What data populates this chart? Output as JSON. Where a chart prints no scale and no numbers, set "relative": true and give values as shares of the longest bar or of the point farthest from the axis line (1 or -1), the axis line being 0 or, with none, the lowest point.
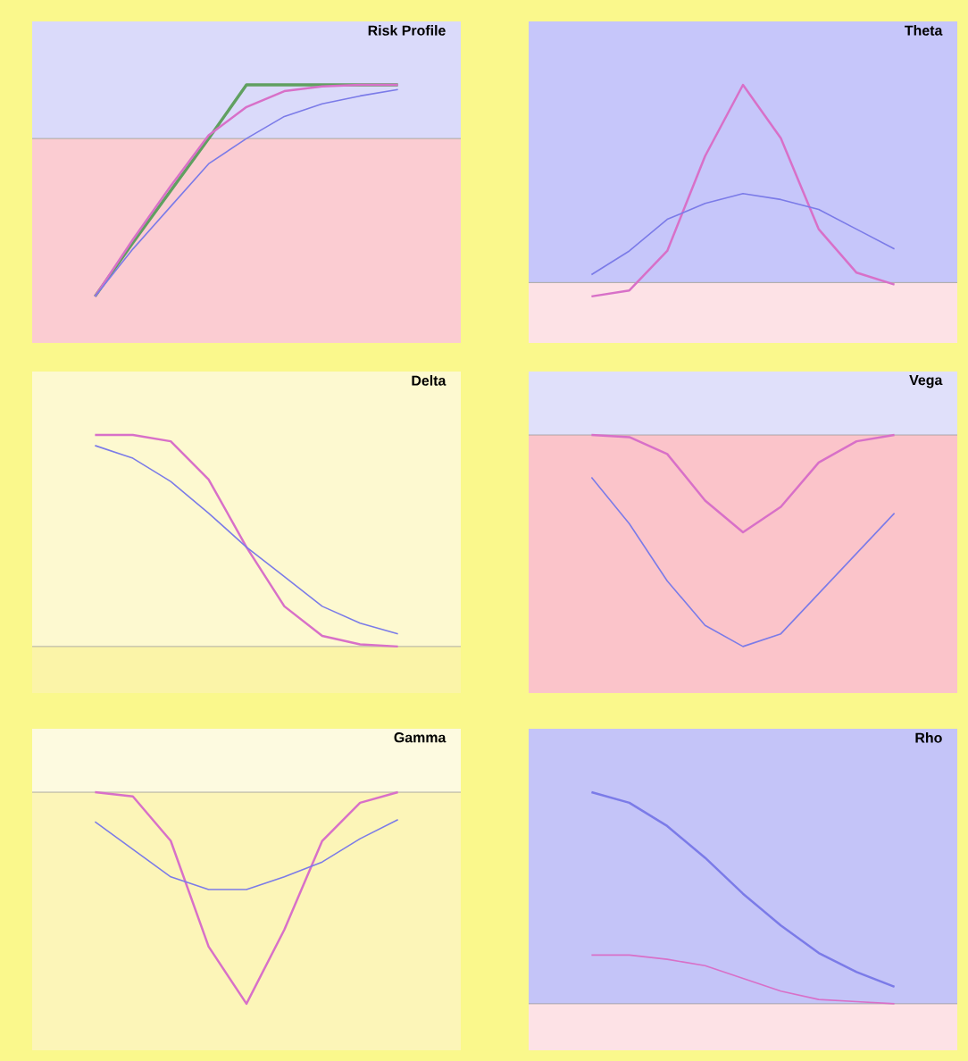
{
  "chart_data": [
    {
      "type": "line",
      "title": "Risk Profile",
      "relative": true,
      "categories": [
        null,
        null,
        null,
        null,
        null,
        null,
        null,
        null,
        null
      ],
      "series": [
        {
          "color": "#60a060",
          "values": [
            -1,
            -0.66,
            -0.33,
            0,
            0.34,
            0.34,
            0.34,
            0.34,
            0.34
          ]
        },
        {
          "color": "#d870c8",
          "values": [
            -1,
            -0.64,
            -0.3,
            0.02,
            0.2,
            0.3,
            0.33,
            0.34,
            0.34
          ]
        },
        {
          "color": "#7b7be8",
          "values": [
            -1,
            -0.7,
            -0.43,
            -0.16,
            0,
            0.14,
            0.22,
            0.27,
            0.31
          ]
        }
      ]
    },
    {
      "type": "line",
      "title": "Theta",
      "relative": true,
      "categories": [
        null,
        null,
        null,
        null,
        null,
        null,
        null,
        null,
        null
      ],
      "series": [
        {
          "color": "#d870c8",
          "values": [
            -0.07,
            -0.04,
            0.16,
            0.64,
            1,
            0.73,
            0.27,
            0.05,
            -0.01
          ]
        },
        {
          "color": "#7b7be8",
          "values": [
            0.04,
            0.16,
            0.32,
            0.4,
            0.45,
            0.42,
            0.37,
            0.27,
            0.17
          ]
        }
      ]
    },
    {
      "type": "line",
      "title": "Delta",
      "relative": true,
      "categories": [
        null,
        null,
        null,
        null,
        null,
        null,
        null,
        null,
        null
      ],
      "series": [
        {
          "color": "#d870c8",
          "values": [
            1,
            1,
            0.97,
            0.79,
            0.47,
            0.19,
            0.05,
            0.01,
            0
          ]
        },
        {
          "color": "#7b7be8",
          "values": [
            0.95,
            0.89,
            0.78,
            0.63,
            0.47,
            0.33,
            0.19,
            0.11,
            0.06
          ]
        }
      ]
    },
    {
      "type": "line",
      "title": "Vega",
      "relative": true,
      "categories": [
        null,
        null,
        null,
        null,
        null,
        null,
        null,
        null,
        null
      ],
      "series": [
        {
          "color": "#d870c8",
          "values": [
            0,
            -0.01,
            -0.09,
            -0.31,
            -0.46,
            -0.34,
            -0.13,
            -0.03,
            0
          ]
        },
        {
          "color": "#7b7be8",
          "values": [
            -0.2,
            -0.42,
            -0.69,
            -0.9,
            -1,
            -0.94,
            -0.75,
            -0.56,
            -0.37
          ]
        }
      ]
    },
    {
      "type": "line",
      "title": "Gamma",
      "relative": true,
      "categories": [
        null,
        null,
        null,
        null,
        null,
        null,
        null,
        null,
        null
      ],
      "series": [
        {
          "color": "#d870c8",
          "values": [
            0,
            -0.02,
            -0.23,
            -0.73,
            -1,
            -0.65,
            -0.23,
            -0.05,
            0
          ]
        },
        {
          "color": "#7b7be8",
          "values": [
            -0.14,
            -0.27,
            -0.4,
            -0.46,
            -0.46,
            -0.4,
            -0.33,
            -0.22,
            -0.13
          ]
        }
      ]
    },
    {
      "type": "line",
      "title": "Rho",
      "relative": true,
      "categories": [
        null,
        null,
        null,
        null,
        null,
        null,
        null,
        null,
        null
      ],
      "series": [
        {
          "color": "#7b7be8",
          "values": [
            1,
            0.95,
            0.84,
            0.69,
            0.52,
            0.37,
            0.24,
            0.15,
            0.08
          ]
        },
        {
          "color": "#d870c8",
          "values": [
            0.23,
            0.23,
            0.21,
            0.18,
            0.12,
            0.06,
            0.02,
            0.01,
            0
          ]
        }
      ]
    }
  ]
}
